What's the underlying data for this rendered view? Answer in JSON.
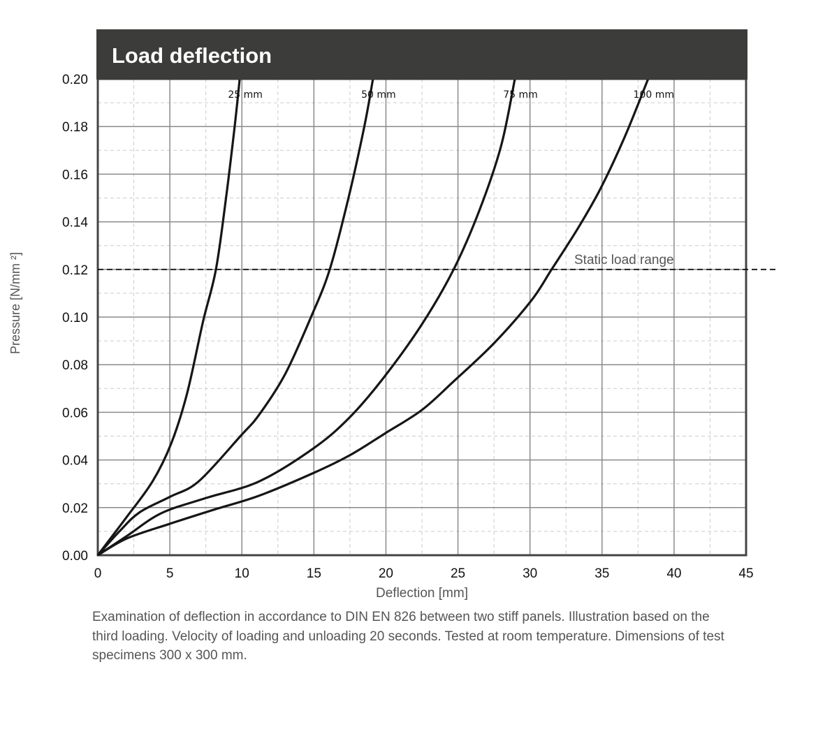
{
  "chart_data": {
    "type": "line",
    "title": "Load deflection",
    "xlabel": "Deflection [mm]",
    "ylabel": "Pressure [N/mm ²]",
    "xlim": [
      0,
      45
    ],
    "ylim": [
      0,
      0.2
    ],
    "xticks": [
      "0",
      "5",
      "10",
      "15",
      "20",
      "25",
      "30",
      "35",
      "40",
      "45"
    ],
    "yticks": [
      "0.00",
      "0.02",
      "0.04",
      "0.06",
      "0.08",
      "0.10",
      "0.12",
      "0.14",
      "0.16",
      "0.18",
      "0.20"
    ],
    "grid": true,
    "series": [
      {
        "name": "25 mm",
        "points": [
          [
            0,
            0
          ],
          [
            1,
            0.008
          ],
          [
            2,
            0.016
          ],
          [
            3.8,
            0.031
          ],
          [
            5.1,
            0.047
          ],
          [
            6.2,
            0.068
          ],
          [
            7.3,
            0.098
          ],
          [
            8.2,
            0.12
          ],
          [
            8.9,
            0.15
          ],
          [
            9.5,
            0.18
          ],
          [
            9.85,
            0.2
          ]
        ]
      },
      {
        "name": "50 mm",
        "points": [
          [
            0,
            0
          ],
          [
            1.5,
            0.01
          ],
          [
            2.9,
            0.018
          ],
          [
            5,
            0.0245
          ],
          [
            7,
            0.031
          ],
          [
            9.9,
            0.05
          ],
          [
            11.2,
            0.059
          ],
          [
            13,
            0.076
          ],
          [
            14.8,
            0.1
          ],
          [
            16.1,
            0.12
          ],
          [
            17.4,
            0.15
          ],
          [
            18.5,
            0.18
          ],
          [
            19.1,
            0.2
          ]
        ]
      },
      {
        "name": "75 mm",
        "points": [
          [
            0,
            0
          ],
          [
            2,
            0.008
          ],
          [
            4.4,
            0.0176
          ],
          [
            7.5,
            0.024
          ],
          [
            11.2,
            0.031
          ],
          [
            15,
            0.045
          ],
          [
            17.5,
            0.058
          ],
          [
            19.9,
            0.075
          ],
          [
            22.5,
            0.097
          ],
          [
            24.7,
            0.12
          ],
          [
            26.5,
            0.145
          ],
          [
            28,
            0.172
          ],
          [
            28.95,
            0.2
          ]
        ]
      },
      {
        "name": "100 mm",
        "points": [
          [
            0,
            0
          ],
          [
            2,
            0.007
          ],
          [
            4.9,
            0.013
          ],
          [
            8,
            0.019
          ],
          [
            11.2,
            0.025
          ],
          [
            15,
            0.0346
          ],
          [
            17.5,
            0.042
          ],
          [
            19.9,
            0.051
          ],
          [
            22.5,
            0.061
          ],
          [
            24.7,
            0.073
          ],
          [
            27.5,
            0.089
          ],
          [
            30.1,
            0.107
          ],
          [
            31.5,
            0.12
          ],
          [
            33.3,
            0.137
          ],
          [
            34.9,
            0.154
          ],
          [
            36.6,
            0.176
          ],
          [
            38.2,
            0.2
          ]
        ]
      }
    ],
    "reference_line": {
      "y": 0.12,
      "label": "Static load range"
    }
  },
  "caption": "Examination of deflection in accordance to DIN EN 826 between two stiff panels. Illustration based on the third loading. Velocity of loading and unloading 20 seconds. Tested at room temperature. Dimensions of test specimens 300 x 300 mm."
}
